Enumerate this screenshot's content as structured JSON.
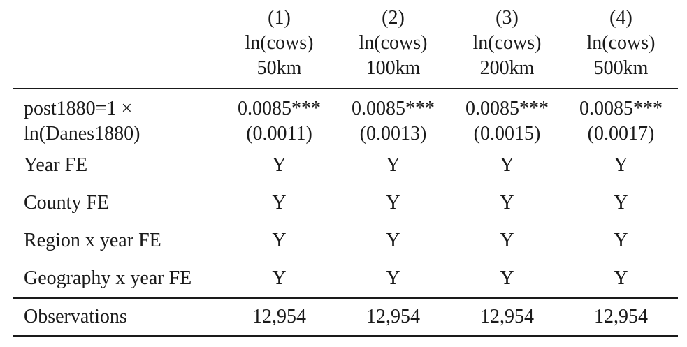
{
  "columns": [
    {
      "num": "(1)",
      "depvar": "ln(cows)",
      "radius": "50km"
    },
    {
      "num": "(2)",
      "depvar": "ln(cows)",
      "radius": "100km"
    },
    {
      "num": "(3)",
      "depvar": "ln(cows)",
      "radius": "200km"
    },
    {
      "num": "(4)",
      "depvar": "ln(cows)",
      "radius": "500km"
    }
  ],
  "coef_row": {
    "label_line1": "post1880=1 ×",
    "label_line2": "ln(Danes1880)",
    "estimates": [
      "0.0085***",
      "0.0085***",
      "0.0085***",
      "0.0085***"
    ],
    "std_errors": [
      "(0.0011)",
      "(0.0013)",
      "(0.0015)",
      "(0.0017)"
    ]
  },
  "fe_rows": [
    {
      "label": "Year FE",
      "values": [
        "Y",
        "Y",
        "Y",
        "Y"
      ]
    },
    {
      "label": "County FE",
      "values": [
        "Y",
        "Y",
        "Y",
        "Y"
      ]
    },
    {
      "label": "Region x year FE",
      "values": [
        "Y",
        "Y",
        "Y",
        "Y"
      ]
    },
    {
      "label": "Geography x year FE",
      "values": [
        "Y",
        "Y",
        "Y",
        "Y"
      ]
    }
  ],
  "observations": {
    "label": "Observations",
    "values": [
      "12,954",
      "12,954",
      "12,954",
      "12,954"
    ]
  }
}
